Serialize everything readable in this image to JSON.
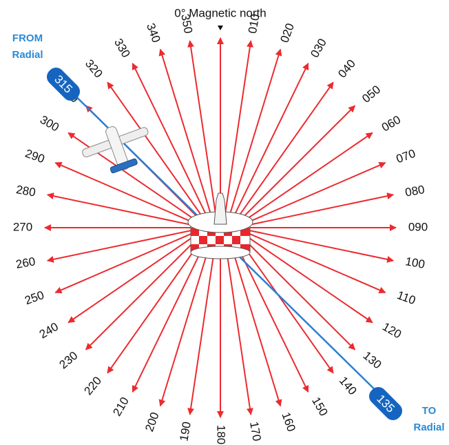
{
  "title": "0° Magnetic north",
  "radials": [
    "010",
    "020",
    "030",
    "040",
    "050",
    "060",
    "070",
    "080",
    "090",
    "100",
    "110",
    "120",
    "130",
    "140",
    "150",
    "160",
    "170",
    "180",
    "190",
    "200",
    "210",
    "220",
    "230",
    "240",
    "250",
    "260",
    "270",
    "280",
    "290",
    "300",
    "310",
    "320",
    "330",
    "340",
    "350"
  ],
  "from": {
    "label": "FROM",
    "sub": "Radial",
    "tag": "315"
  },
  "to": {
    "label": "TO",
    "sub": "Radial",
    "tag": "135"
  }
}
